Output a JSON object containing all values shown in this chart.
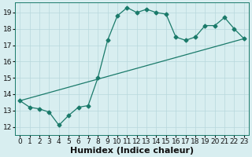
{
  "xlabel": "Humidex (Indice chaleur)",
  "xlim": [
    -0.5,
    23.5
  ],
  "ylim": [
    11.5,
    19.6
  ],
  "xticks": [
    0,
    1,
    2,
    3,
    4,
    5,
    6,
    7,
    8,
    9,
    10,
    11,
    12,
    13,
    14,
    15,
    16,
    17,
    18,
    19,
    20,
    21,
    22,
    23
  ],
  "yticks": [
    12,
    13,
    14,
    15,
    16,
    17,
    18,
    19
  ],
  "line1_x": [
    0,
    1,
    2,
    3,
    4,
    5,
    6,
    7,
    8,
    9,
    10,
    11,
    12,
    13,
    14,
    15,
    16,
    17,
    18,
    19,
    20,
    21,
    22,
    23
  ],
  "line1_y": [
    13.6,
    13.2,
    13.1,
    12.9,
    12.1,
    12.7,
    13.2,
    13.3,
    15.0,
    17.3,
    18.8,
    19.3,
    19.0,
    19.2,
    19.0,
    18.9,
    17.5,
    17.3,
    17.5,
    18.2,
    18.2,
    18.7,
    18.0,
    17.4
  ],
  "line2_x": [
    0,
    23
  ],
  "line2_y": [
    13.6,
    17.4
  ],
  "line_color": "#1a7a6a",
  "bg_color": "#d8eef0",
  "grid_color": "#b8d8dc",
  "font_color": "#111111",
  "xlabel_fontsize": 8,
  "tick_fontsize": 6.5
}
